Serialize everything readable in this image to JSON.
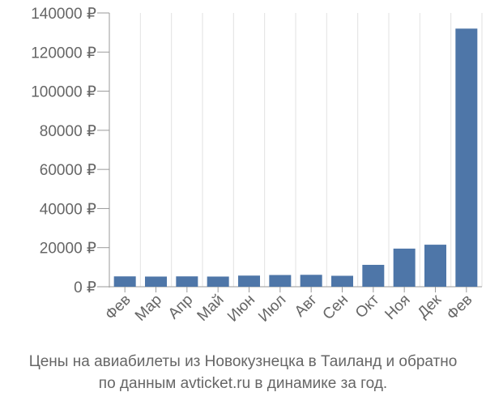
{
  "chart_data": {
    "type": "bar",
    "categories": [
      "Фев",
      "Мар",
      "Апр",
      "Май",
      "Июн",
      "Июл",
      "Авг",
      "Сен",
      "Окт",
      "Ноя",
      "Дек",
      "Фев"
    ],
    "values": [
      5300,
      5200,
      5300,
      5200,
      5700,
      6000,
      6100,
      5600,
      11200,
      19500,
      21500,
      132000
    ],
    "y_ticks": [
      0,
      20000,
      40000,
      60000,
      80000,
      100000,
      120000,
      140000
    ],
    "y_tick_labels": [
      "0 ₽",
      "20000 ₽",
      "40000 ₽",
      "60000 ₽",
      "80000 ₽",
      "100000 ₽",
      "120000 ₽",
      "140000 ₽"
    ],
    "ylim": [
      0,
      140000
    ],
    "grid": "vertical",
    "bar_color": "#4e76a8",
    "caption": [
      "Цены на авиабилеты из Новокузнецка в Таиланд и обратно",
      "по данным avticket.ru в динамике за год."
    ]
  }
}
